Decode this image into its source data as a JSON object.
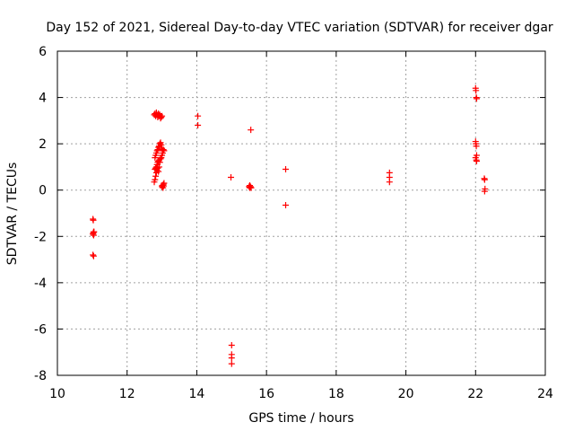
{
  "chart_data": {
    "type": "scatter",
    "title": "Day 152 of 2021, Sidereal Day-to-day VTEC variation (SDTVAR) for receiver dgar",
    "xlabel": "GPS time / hours",
    "ylabel": "SDTVAR / TECUs",
    "xlim": [
      10,
      24
    ],
    "ylim": [
      -8,
      6
    ],
    "xticks": [
      10,
      12,
      14,
      16,
      18,
      20,
      22,
      24
    ],
    "yticks": [
      -8,
      -6,
      -4,
      -2,
      0,
      2,
      4,
      6
    ],
    "grid": true,
    "marker": "plus",
    "color": "#ff0000",
    "series": [
      {
        "name": "SDTVAR",
        "x": [
          11.02,
          11.03,
          11.04,
          11.02,
          11.04,
          11.03,
          11.05,
          11.02,
          11.04,
          12.78,
          12.8,
          12.82,
          12.84,
          12.86,
          12.88,
          12.9,
          12.92,
          12.94,
          12.96,
          12.98,
          13.0,
          12.8,
          12.82,
          12.84,
          12.86,
          12.88,
          12.9,
          12.92,
          12.94,
          12.96,
          12.98,
          13.0,
          13.02,
          13.04,
          13.06,
          12.8,
          12.82,
          12.84,
          12.86,
          12.88,
          12.9,
          12.92,
          12.94,
          12.96,
          12.98,
          13.0,
          13.02,
          12.78,
          12.8,
          12.82,
          12.84,
          12.86,
          12.88,
          12.9,
          12.92,
          13.0,
          13.02,
          13.04,
          13.06,
          13.03,
          13.01,
          13.05,
          14.03,
          14.03,
          14.98,
          15.0,
          15.0,
          15.0,
          15.0,
          15.5,
          15.52,
          15.52,
          15.54,
          15.56,
          15.55,
          16.55,
          16.55,
          19.53,
          19.53,
          19.53,
          22.0,
          22.01,
          22.02,
          22.03,
          22.0,
          22.01,
          22.02,
          22.03,
          22.0,
          22.02,
          22.03,
          22.25,
          22.26,
          22.27,
          22.26
        ],
        "y": [
          -1.25,
          -1.3,
          -1.8,
          -1.9,
          -1.95,
          -1.85,
          -1.8,
          -2.8,
          -2.85,
          3.25,
          3.3,
          3.2,
          3.35,
          3.25,
          3.15,
          3.3,
          3.2,
          3.25,
          3.1,
          3.15,
          3.2,
          1.4,
          1.5,
          1.6,
          1.7,
          1.75,
          1.85,
          1.9,
          2.0,
          2.05,
          1.95,
          1.8,
          1.7,
          1.75,
          1.7,
          0.9,
          0.95,
          1.0,
          1.1,
          1.2,
          1.25,
          1.3,
          1.2,
          1.35,
          1.4,
          1.5,
          1.6,
          0.35,
          0.45,
          0.6,
          0.75,
          0.85,
          0.95,
          0.8,
          1.0,
          0.15,
          0.2,
          0.25,
          0.3,
          0.1,
          0.2,
          0.18,
          3.2,
          2.8,
          0.55,
          -6.7,
          -7.1,
          -7.25,
          -7.5,
          0.15,
          0.1,
          0.2,
          0.15,
          0.1,
          2.6,
          0.9,
          -0.65,
          0.75,
          0.55,
          0.35,
          4.4,
          4.3,
          4.0,
          3.95,
          2.1,
          2.0,
          1.9,
          1.5,
          1.4,
          1.3,
          1.25,
          0.5,
          0.45,
          0.05,
          -0.05
        ]
      }
    ]
  }
}
